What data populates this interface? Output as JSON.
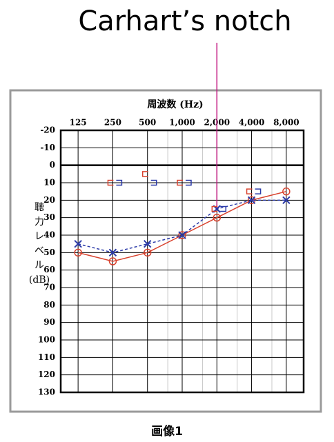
{
  "chart_data": {
    "type": "audiogram",
    "title": "周波数 (Hz)",
    "annotation": {
      "text": "Carhart’s notch",
      "x": 2000,
      "y": 25
    },
    "ylabel": [
      "聴",
      "力",
      "レ",
      "ベ",
      "ル",
      "(dB)"
    ],
    "caption": "画像1",
    "log_x": true,
    "xlim": [
      88.39,
      11313.71
    ],
    "xticks": [
      125,
      250,
      500,
      {
        "value": 1000,
        "label": "1,000"
      },
      {
        "value": 2000,
        "label": "2,000"
      },
      {
        "value": 4000,
        "label": "4,000"
      },
      {
        "value": 8000,
        "label": "8,000"
      }
    ],
    "xminor": [
      750,
      1500,
      3000,
      6000
    ],
    "ylim": [
      -20,
      130
    ],
    "yticks": [
      -20,
      -10,
      0,
      10,
      20,
      30,
      40,
      50,
      60,
      70,
      80,
      90,
      100,
      110,
      120,
      130
    ],
    "inverted_y": true,
    "grid": true,
    "x": [
      125,
      250,
      500,
      1000,
      2000,
      4000,
      8000
    ],
    "series": [
      {
        "marker": "circle",
        "line": "solid",
        "color": "#d9432f",
        "values": [
          50,
          55,
          50,
          40,
          30,
          20,
          15
        ]
      },
      {
        "marker": "cross",
        "line": "dashed",
        "color": "#2b3aa8",
        "values": [
          45,
          50,
          45,
          40,
          25,
          20,
          20
        ]
      },
      {
        "marker": "bracket-left",
        "line": "none",
        "color": "#d9432f",
        "values": [
          null,
          10,
          5,
          10,
          25,
          15,
          null
        ]
      },
      {
        "marker": "bracket-right",
        "line": "none",
        "color": "#2b3aa8",
        "values": [
          null,
          10,
          10,
          10,
          25,
          15,
          null
        ]
      }
    ]
  }
}
